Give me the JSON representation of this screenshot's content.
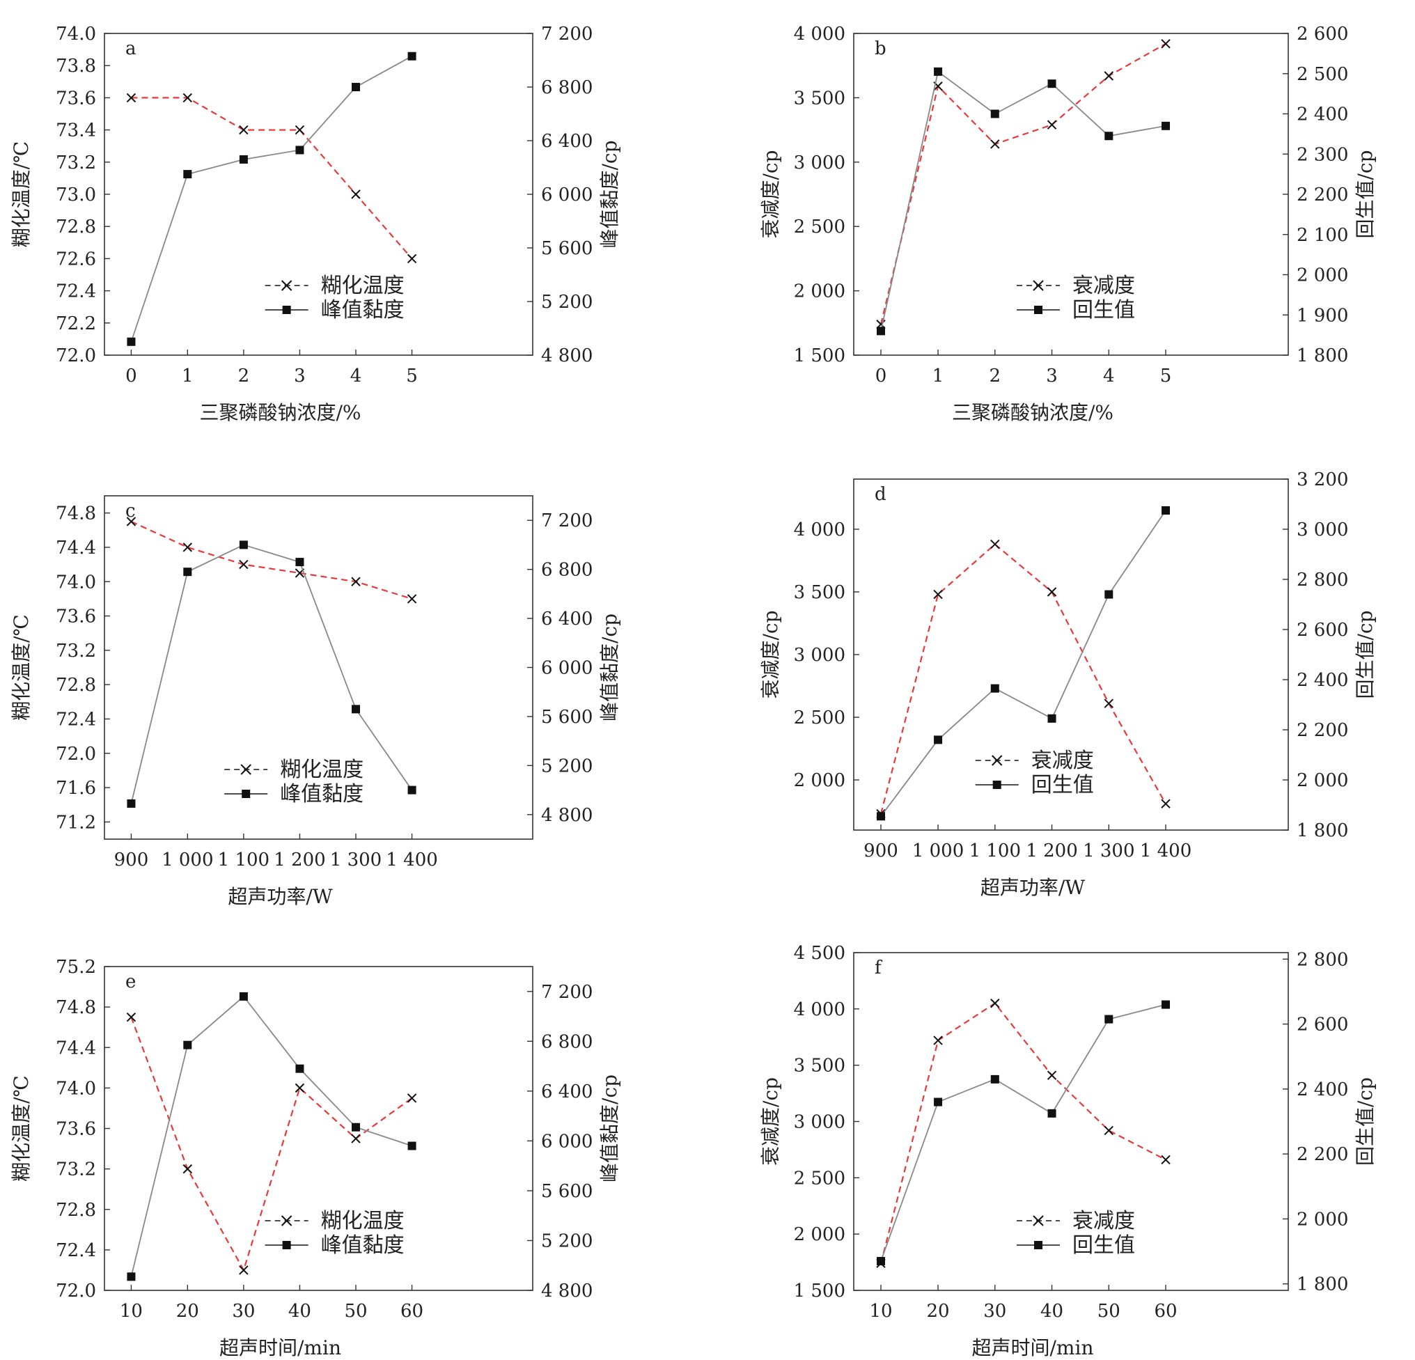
{
  "colors": {
    "dashed_series": "#e8393b",
    "solid_series": "#888888",
    "marker": "#111111",
    "axis": "#333333"
  },
  "chart_data": [
    {
      "panel": "a",
      "type": "line",
      "x": [
        "0",
        "1",
        "2",
        "3",
        "4",
        "5"
      ],
      "xlabel": "三聚磷酸钠浓度/%",
      "ylabel_left": "糊化温度/℃",
      "ylim_left": [
        72.0,
        74.0
      ],
      "yticks_left": [
        "72.0",
        "72.2",
        "72.4",
        "72.6",
        "72.8",
        "73.0",
        "73.2",
        "73.4",
        "73.6",
        "73.8",
        "74.0"
      ],
      "ylabel_right": "峰值黏度/cp",
      "ylim_right": [
        4800,
        7200
      ],
      "yticks_right": [
        "4 800",
        "5 200",
        "5 600",
        "6 000",
        "6 400",
        "6 800",
        "7 200"
      ],
      "series": [
        {
          "name": "糊化温度",
          "axis": "left",
          "style": "dashed-x",
          "values": [
            73.6,
            73.6,
            73.4,
            73.4,
            73.0,
            72.6
          ]
        },
        {
          "name": "峰值黏度",
          "axis": "right",
          "style": "solid-square",
          "values": [
            4900,
            6150,
            6260,
            6330,
            6800,
            7030
          ]
        }
      ],
      "legend_position": "bottom-right"
    },
    {
      "panel": "b",
      "type": "line",
      "x": [
        "0",
        "1",
        "2",
        "3",
        "4",
        "5"
      ],
      "xlabel": "三聚磷酸钠浓度/%",
      "ylabel_left": "衰减度/cp",
      "ylim_left": [
        1500,
        4000
      ],
      "yticks_left": [
        "1 500",
        "2 000",
        "2 500",
        "3 000",
        "3 500",
        "4 000"
      ],
      "ylabel_right": "回生值/cp",
      "ylim_right": [
        1800,
        2600
      ],
      "yticks_right": [
        "1 800",
        "1 900",
        "2 000",
        "2 100",
        "2 200",
        "2 300",
        "2 400",
        "2 500",
        "2 600"
      ],
      "series": [
        {
          "name": "衰减度",
          "axis": "left",
          "style": "dashed-x",
          "values": [
            1740,
            3590,
            3140,
            3290,
            3670,
            3920
          ]
        },
        {
          "name": "回生值",
          "axis": "right",
          "style": "solid-square",
          "values": [
            1860,
            2505,
            2400,
            2475,
            2345,
            2370
          ]
        }
      ],
      "legend_position": "bottom-right"
    },
    {
      "panel": "c",
      "type": "line",
      "x": [
        "900",
        "1 000",
        "1 100",
        "1 200",
        "1 300",
        "1 400"
      ],
      "xlabel": "超声功率/W",
      "ylabel_left": "糊化温度/℃",
      "ylim_left": [
        71.0,
        75.0
      ],
      "yticks_left": [
        "71.2",
        "71.6",
        "72.0",
        "72.4",
        "72.8",
        "73.2",
        "73.6",
        "74.0",
        "74.4",
        "74.8"
      ],
      "ylabel_right": "峰值黏度/cp",
      "ylim_right": [
        4600,
        7400
      ],
      "yticks_right": [
        "4 800",
        "5 200",
        "5 600",
        "6 000",
        "6 400",
        "6 800",
        "7 200"
      ],
      "series": [
        {
          "name": "糊化温度",
          "axis": "left",
          "style": "dashed-x",
          "values": [
            74.7,
            74.4,
            74.2,
            74.1,
            74.0,
            73.8
          ]
        },
        {
          "name": "峰值黏度",
          "axis": "right",
          "style": "solid-square",
          "values": [
            4890,
            6780,
            7000,
            6860,
            5660,
            5000
          ]
        }
      ],
      "legend_position": "bottom-center"
    },
    {
      "panel": "d",
      "type": "line",
      "x": [
        "900",
        "1 000",
        "1 100",
        "1 200",
        "1 300",
        "1 400"
      ],
      "xlabel": "超声功率/W",
      "ylabel_left": "衰减度/cp",
      "ylim_left": [
        1600,
        4400
      ],
      "yticks_left": [
        "2 000",
        "2 500",
        "3 000",
        "3 500",
        "4 000"
      ],
      "ylabel_right": "回生值/cp",
      "ylim_right": [
        1800,
        3200
      ],
      "yticks_right": [
        "1 800",
        "2 000",
        "2 200",
        "2 400",
        "2 600",
        "2 800",
        "3 000",
        "3 200"
      ],
      "series": [
        {
          "name": "衰减度",
          "axis": "left",
          "style": "dashed-x",
          "values": [
            1730,
            3480,
            3880,
            3500,
            2610,
            1810
          ]
        },
        {
          "name": "回生值",
          "axis": "right",
          "style": "solid-square",
          "values": [
            1855,
            2160,
            2365,
            2245,
            2740,
            3075
          ]
        }
      ],
      "legend_position": "bottom-center"
    },
    {
      "panel": "e",
      "type": "line",
      "x": [
        "10",
        "20",
        "30",
        "40",
        "50",
        "60"
      ],
      "xlabel": "超声时间/min",
      "ylabel_left": "糊化温度/℃",
      "ylim_left": [
        72.0,
        75.2
      ],
      "yticks_left": [
        "72.0",
        "72.4",
        "72.8",
        "73.2",
        "73.6",
        "74.0",
        "74.4",
        "74.8",
        "75.2"
      ],
      "ylabel_right": "峰值黏度/cp",
      "ylim_right": [
        4800,
        7400
      ],
      "yticks_right": [
        "4 800",
        "5 200",
        "5 600",
        "6 000",
        "6 400",
        "6 800",
        "7 200"
      ],
      "series": [
        {
          "name": "糊化温度",
          "axis": "left",
          "style": "dashed-x",
          "values": [
            74.7,
            73.2,
            72.2,
            74.0,
            73.5,
            73.9
          ]
        },
        {
          "name": "峰值黏度",
          "axis": "right",
          "style": "solid-square",
          "values": [
            4910,
            6770,
            7160,
            6580,
            6110,
            5960
          ]
        }
      ],
      "legend_position": "bottom-right"
    },
    {
      "panel": "f",
      "type": "line",
      "x": [
        "10",
        "20",
        "30",
        "40",
        "50",
        "60"
      ],
      "xlabel": "超声时间/min",
      "ylabel_left": "衰减度/cp",
      "ylim_left": [
        1500,
        4500
      ],
      "yticks_left": [
        "1 500",
        "2 000",
        "2 500",
        "3 000",
        "3 500",
        "4 000",
        "4 500"
      ],
      "ylabel_right": "回生值/cp",
      "ylim_right": [
        1780,
        2820
      ],
      "yticks_right": [
        "1 800",
        "2 000",
        "2 200",
        "2 400",
        "2 600",
        "2 800"
      ],
      "series": [
        {
          "name": "衰减度",
          "axis": "left",
          "style": "dashed-x",
          "values": [
            1740,
            3720,
            4050,
            3410,
            2920,
            2660
          ]
        },
        {
          "name": "回生值",
          "axis": "right",
          "style": "solid-square",
          "values": [
            1870,
            2360,
            2430,
            2325,
            2615,
            2660
          ]
        }
      ],
      "legend_position": "bottom-right"
    }
  ]
}
